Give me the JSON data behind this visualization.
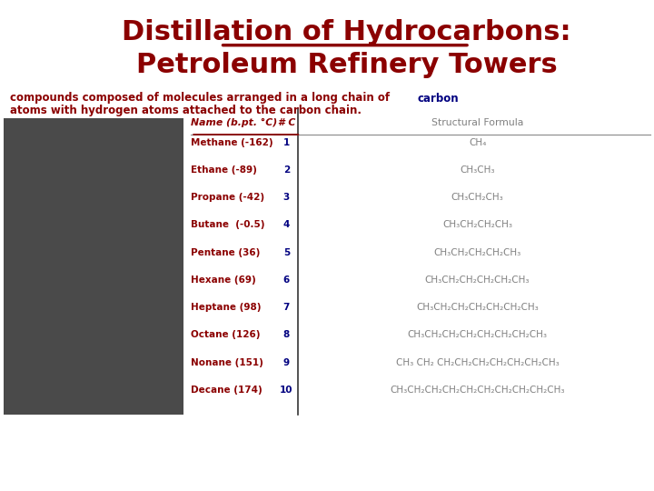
{
  "title_line1": "Distillation of Hydrocarbons:",
  "title_line2": "Petroleum Refinery Towers",
  "title_color": "#8B0000",
  "subtitle_color": "#8B0000",
  "subtitle": "compounds composed of molecules arranged in a long chain of ",
  "subtitle2": "atoms with hydrogen atoms attached to the carbon chain.",
  "carbon_word": "carbon",
  "carbon_color": "#000080",
  "bg_color": "#ffffff",
  "header_name": "Name (b.pt. °C)",
  "header_nc": "# C",
  "header_formula": "Structural Formula",
  "header_color": "#8B0000",
  "col_formula_color": "#808080",
  "nc_color": "#000080",
  "rows": [
    {
      "name": "Methane (-162)",
      "nc": "1",
      "formula": "CH₄"
    },
    {
      "name": "Ethane (-89)",
      "nc": "2",
      "formula": "CH₃CH₃"
    },
    {
      "name": "Propane (-42)",
      "nc": "3",
      "formula": "CH₃CH₂CH₃"
    },
    {
      "name": "Butane  (-0.5)",
      "nc": "4",
      "formula": "CH₃CH₂CH₂CH₃"
    },
    {
      "name": "Pentane (36)",
      "nc": "5",
      "formula": "CH₃CH₂CH₂CH₂CH₃"
    },
    {
      "name": "Hexane (69)",
      "nc": "6",
      "formula": "CH₃CH₂CH₂CH₂CH₂CH₃"
    },
    {
      "name": "Heptane (98)",
      "nc": "7",
      "formula": "CH₃CH₂CH₂CH₂CH₂CH₂CH₃"
    },
    {
      "name": "Octane (126)",
      "nc": "8",
      "formula": "CH₃CH₂CH₂CH₂CH₂CH₂CH₂CH₃"
    },
    {
      "name": "Nonane (151)",
      "nc": "9",
      "formula": "CH₃ CH₂ CH₂CH₂CH₂CH₂CH₂CH₂CH₃"
    },
    {
      "name": "Decane (174)",
      "nc": "10",
      "formula": "CH₃CH₂CH₂CH₂CH₂CH₂CH₂CH₂CH₂CH₃"
    }
  ]
}
